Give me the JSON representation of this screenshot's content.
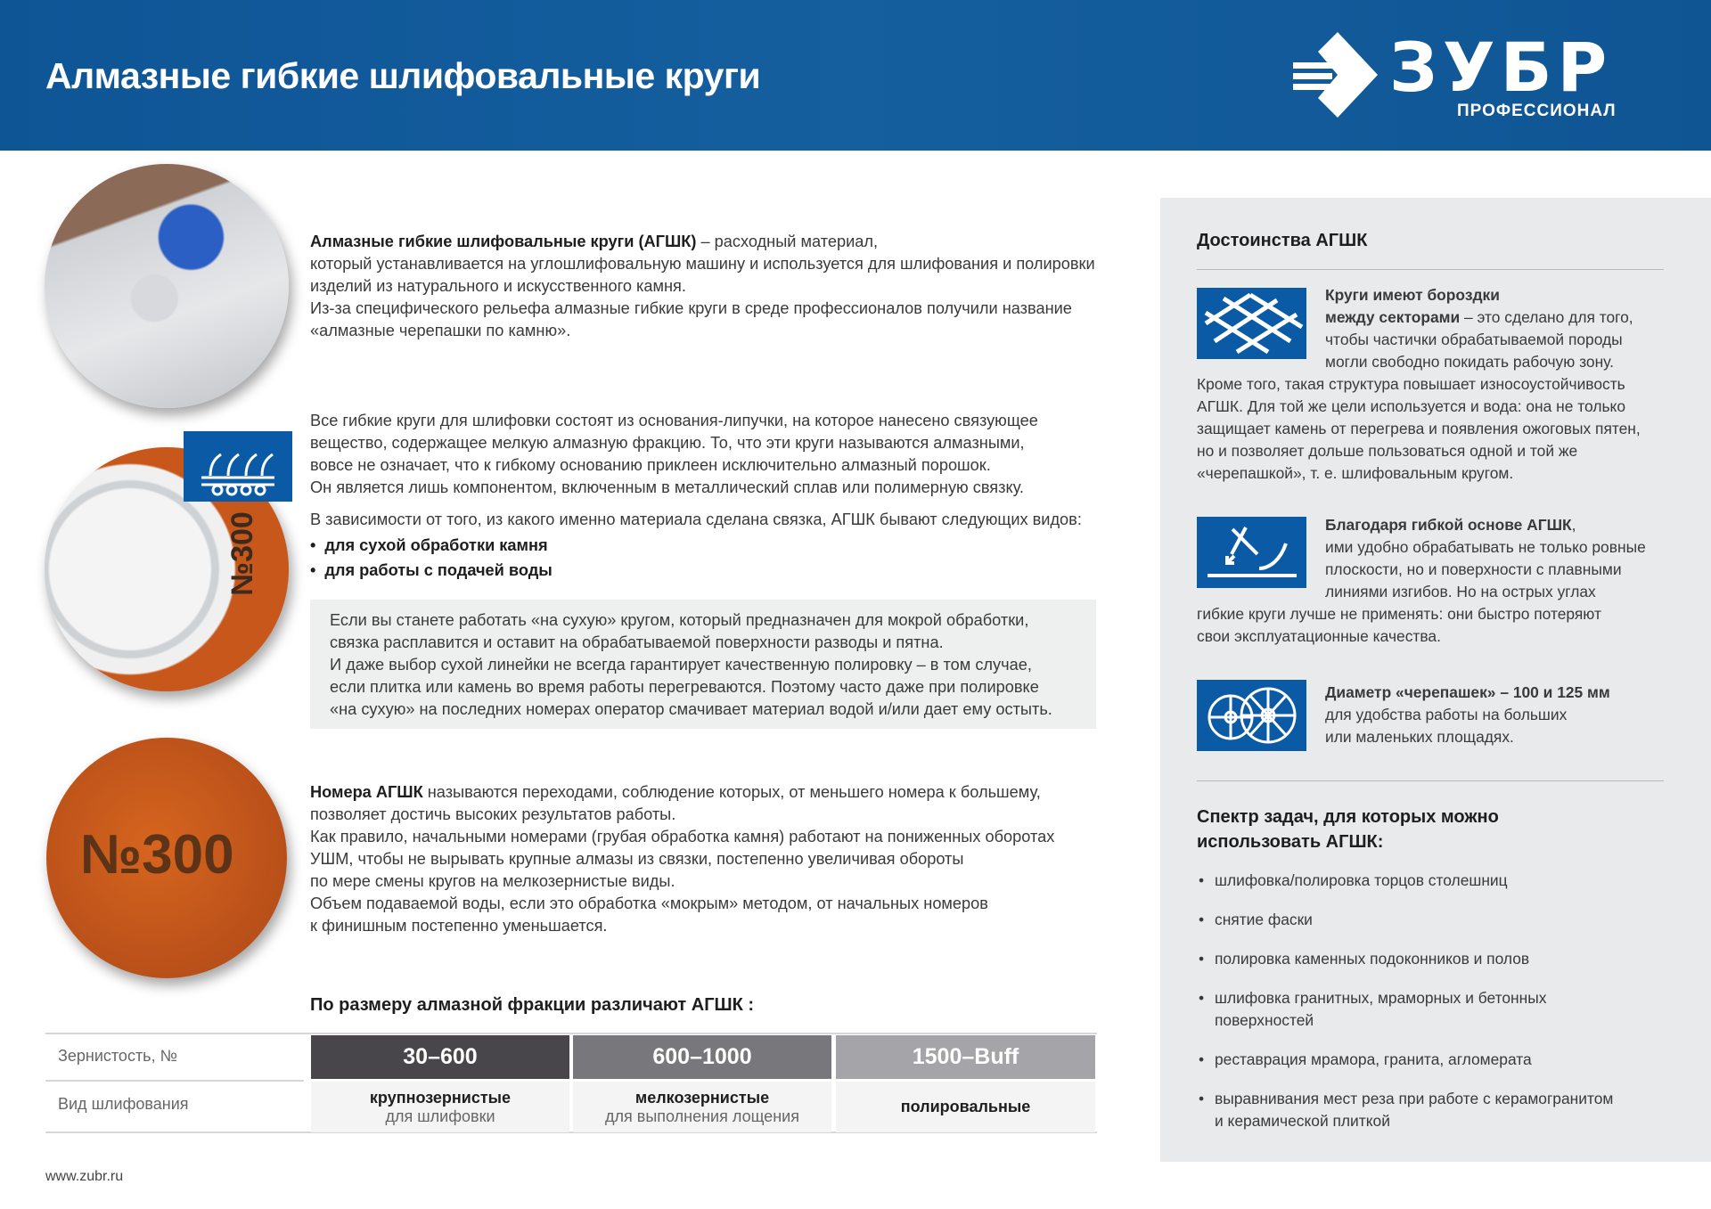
{
  "header": {
    "title": "Алмазные гибкие шлифовальные круги",
    "logo_text": "ЗУБР",
    "logo_sub": "ПРОФЕССИОНАЛ",
    "color": "#0f5a9a"
  },
  "images": {
    "disc2_number": "№300",
    "disc3_number": "№300"
  },
  "intro": {
    "bold": "Алмазные гибкие шлифовальные круги (АГШК)",
    "text": " – расходный материал,\nкоторый устанавливается на углошлифовальную машину и используется для шлифования и полировки\nизделий из натурального и искусственного камня.\nИз-за специфического рельефа алмазные гибкие круги в среде профессионалов получили название\n«алмазные черепашки по камню»."
  },
  "composition": {
    "text": "Все гибкие круги для шлифовки состоят из основания-липучки, на которое нанесено связующее\nвещество, содержащее мелкую алмазную фракцию. То, что эти круги называются алмазными,\nвовсе не означает, что к гибкому основанию приклеен исключительно алмазный порошок.\nОн является лишь компонентом, включенным в металлический сплав или полимерную связку.",
    "types_intro": "В зависимости от того, из какого именно материала сделана связка, АГШК бывают следующих видов:",
    "types": [
      "для сухой обработки камня",
      "для работы с подачей воды"
    ]
  },
  "note": "Если вы станете работать «на сухую» кругом, который предназначен для мокрой обработки,\nсвязка расплавится и оставит на обрабатываемой поверхности разводы и пятна.\nИ даже выбор сухой линейки не всегда гарантирует качественную полировку – в том случае,\nесли плитка или камень во время работы перегреваются. Поэтому часто даже при полировке\n«на сухую» на последних номерах оператор смачивает материал водой и/или дает ему остыть.",
  "numbers": {
    "bold": "Номера АГШК",
    "text": " называются переходами, соблюдение которых, от меньшего номера к большему,\nпозволяет достичь высоких результатов работы.\nКак правило, начальными номерами (грубая обработка камня) работают на пониженных оборотах\nУШМ, чтобы не вырывать крупные алмазы из связки, постепенно увеличивая обороты\nпо мере смены кругов на мелкозернистые виды.\nОбъем подаваемой воды, если это обработка «мокрым» методом, от начальных номеров\nк финишным постепенно уменьшается."
  },
  "table": {
    "title": "По размеру алмазной фракции различают АГШК :",
    "row_labels": [
      "Зернистость, №",
      "Вид шлифования"
    ],
    "columns": [
      {
        "grit": "30–600",
        "type": "крупнозернистые",
        "desc": "для шлифовки",
        "color": "#48464a"
      },
      {
        "grit": "600–1000",
        "type": "мелкозернистые",
        "desc": "для выполнения лощения",
        "color": "#78777b"
      },
      {
        "grit": "1500–Buff",
        "type": "полировальные",
        "desc": "",
        "color": "#a5a4a8"
      }
    ]
  },
  "footer": {
    "site": "www.zubr.ru"
  },
  "panel": {
    "title": "Достоинства АГШК",
    "features": [
      {
        "icon": "grid-grooves-icon",
        "bold": "Круги имеют бороздки\nмежду секторами",
        "lead": " – это сделано для того,\nчтобы частички обрабатываемой породы\nмогли свободно покидать рабочую зону.",
        "text": "Кроме того, такая структура повышает износоустойчивость\nАГШК. Для той же цели используется и вода: она не только\nзащищает камень от перегрева и появления ожоговых пятен,\nно и позволяет дольше пользоваться одной и той же\n«черепашкой», т. е. шлифовальным кругом."
      },
      {
        "icon": "flexible-base-icon",
        "bold": "Благодаря гибкой основе АГШК",
        "lead": ",\nими удобно обрабатывать не только ровные\nплоскости, но и поверхности с плавными\nлиниями изгибов. Но на острых углах",
        "text": "гибкие круги лучше не применять: они быстро потеряют\nсвои эксплуатационные качества."
      },
      {
        "icon": "disc-diameter-icon",
        "bold": "Диаметр «черепашек» – 100 и 125 мм",
        "lead": "\nдля удобства работы на больших\nили маленьких площадях.",
        "text": ""
      }
    ],
    "tasks_title": "Спектр задач, для которых можно\nиспользовать АГШК:",
    "tasks": [
      "шлифовка/полировка торцов столешниц",
      "снятие фаски",
      "полировка каменных подоконников и полов",
      "шлифовка гранитных, мраморных и бетонных\nповерхностей",
      "реставрация мрамора, гранита, агломерата",
      "выравнивания мест реза при работе с керамогранитом\nи керамической плиткой"
    ]
  }
}
